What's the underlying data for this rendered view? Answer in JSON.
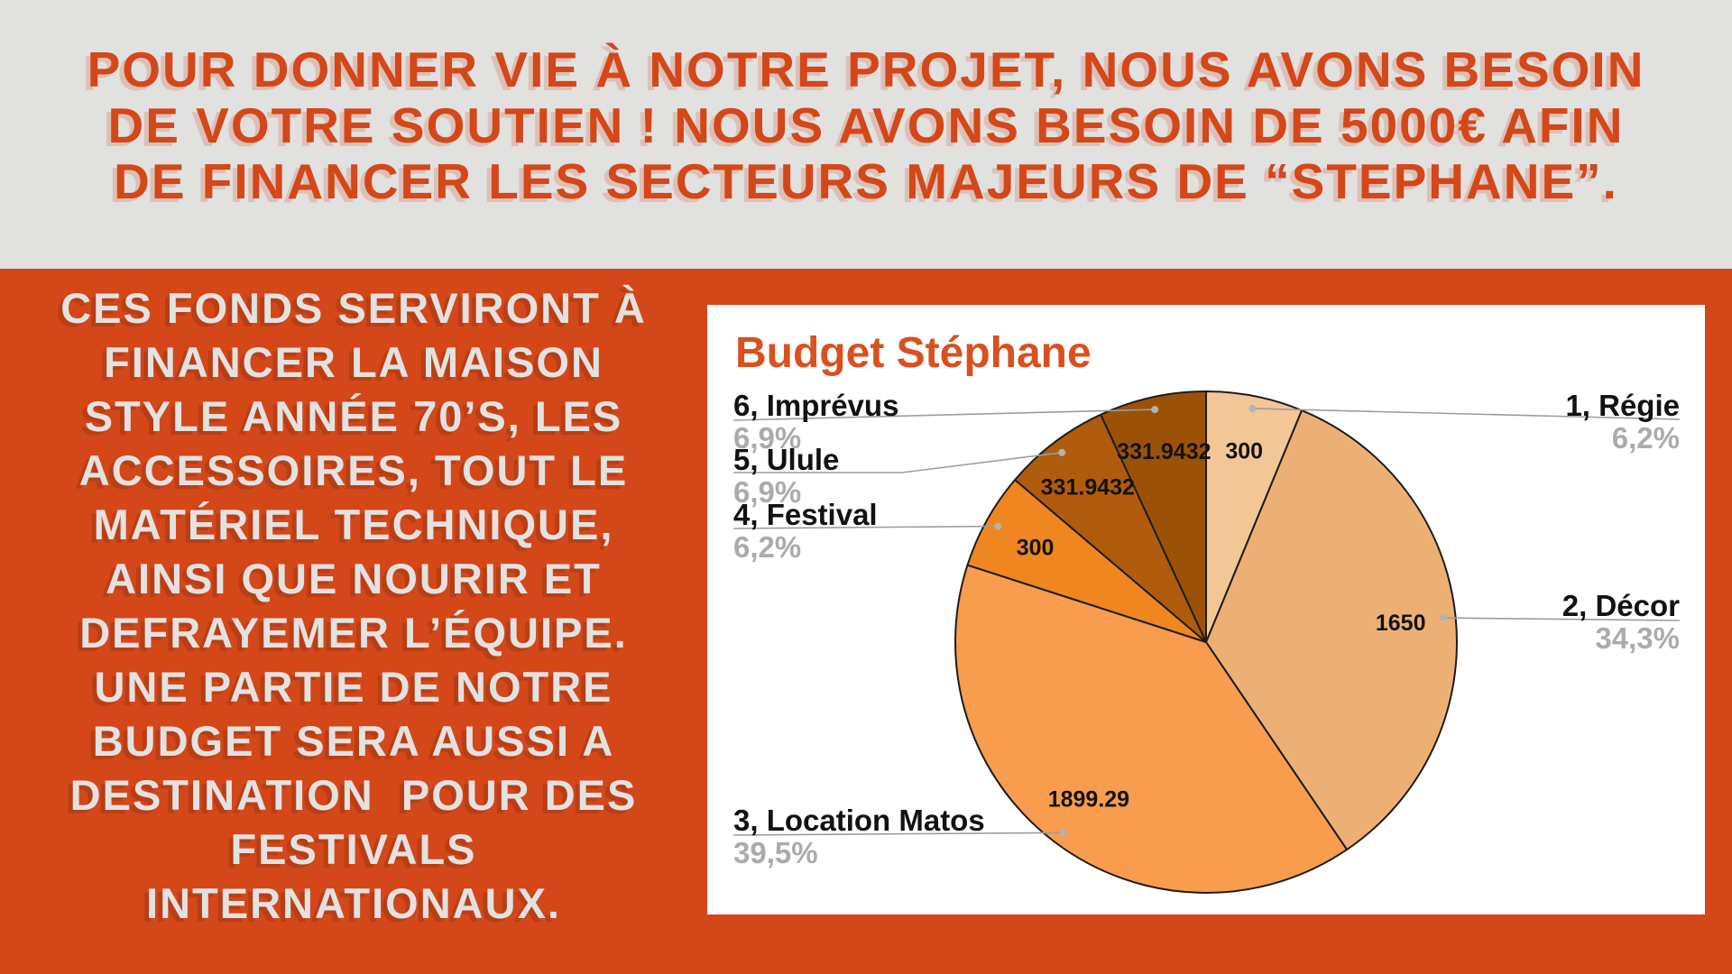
{
  "banner": {
    "lines": [
      "POUR DONNER VIE À NOTRE PROJET, NOUS AVONS BESOIN",
      "DE VOTRE SOUTIEN ! NOUS AVONS BESOIN DE 5000€ AFIN",
      "DE FINANCER LES SECTEURS MAJEURS DE “STEPHANE”."
    ]
  },
  "left_text": {
    "lines": [
      "CES FONDS SERVIRONT À",
      "FINANCER LA MAISON",
      "STYLE ANNÉE 70’S, LES",
      "ACCESSOIRES, TOUT LE",
      "MATÉRIEL TECHNIQUE,",
      "AINSI QUE NOURIR ET",
      "DEFRAYEMER L’ÉQUIPE.",
      "UNE PARTIE DE NOTRE",
      "BUDGET SERA AUSSI A",
      "DESTINATION  POUR DES",
      "FESTIVALS",
      "INTERNATIONAUX."
    ]
  },
  "chart_data": {
    "type": "pie",
    "title": "Budget Stéphane",
    "start_angle_deg": 0,
    "direction": "clockwise",
    "legend_position": "outside-callouts",
    "slices": [
      {
        "index": 1,
        "name": "1, Régie",
        "value": 300,
        "value_label": "300",
        "pct_label": "6,2%",
        "color": "#F3C795",
        "label_side": "right"
      },
      {
        "index": 2,
        "name": "2, Décor",
        "value": 1650,
        "value_label": "1650",
        "pct_label": "34,3%",
        "color": "#EDB074",
        "label_side": "right"
      },
      {
        "index": 3,
        "name": "3, Location Matos",
        "value": 1899.29,
        "value_label": "1899.29",
        "pct_label": "39,5%",
        "color": "#F89C4D",
        "label_side": "left"
      },
      {
        "index": 4,
        "name": "4, Festival",
        "value": 300,
        "value_label": "300",
        "pct_label": "6,2%",
        "color": "#EF861F",
        "label_side": "left"
      },
      {
        "index": 5,
        "name": "5, Ulule",
        "value": 331.9432,
        "value_label": "331.9432",
        "pct_label": "6,9%",
        "color": "#B05C0C",
        "label_side": "left"
      },
      {
        "index": 6,
        "name": "6, Imprévus",
        "value": 331.9432,
        "value_label": "331.9432",
        "pct_label": "6,9%",
        "color": "#9C5206",
        "label_side": "left"
      }
    ]
  },
  "colors": {
    "background_orange": "#d34719",
    "banner_gray": "#e1e1e0",
    "banner_text_orange": "#d34719",
    "left_text_light": "#e3e2e1",
    "chart_title_orange": "#d8511f",
    "label_black": "#121212",
    "label_gray": "#ababab",
    "leader_line_gray": "#9c9c9c",
    "slice_outline": "#1c1c1c"
  }
}
